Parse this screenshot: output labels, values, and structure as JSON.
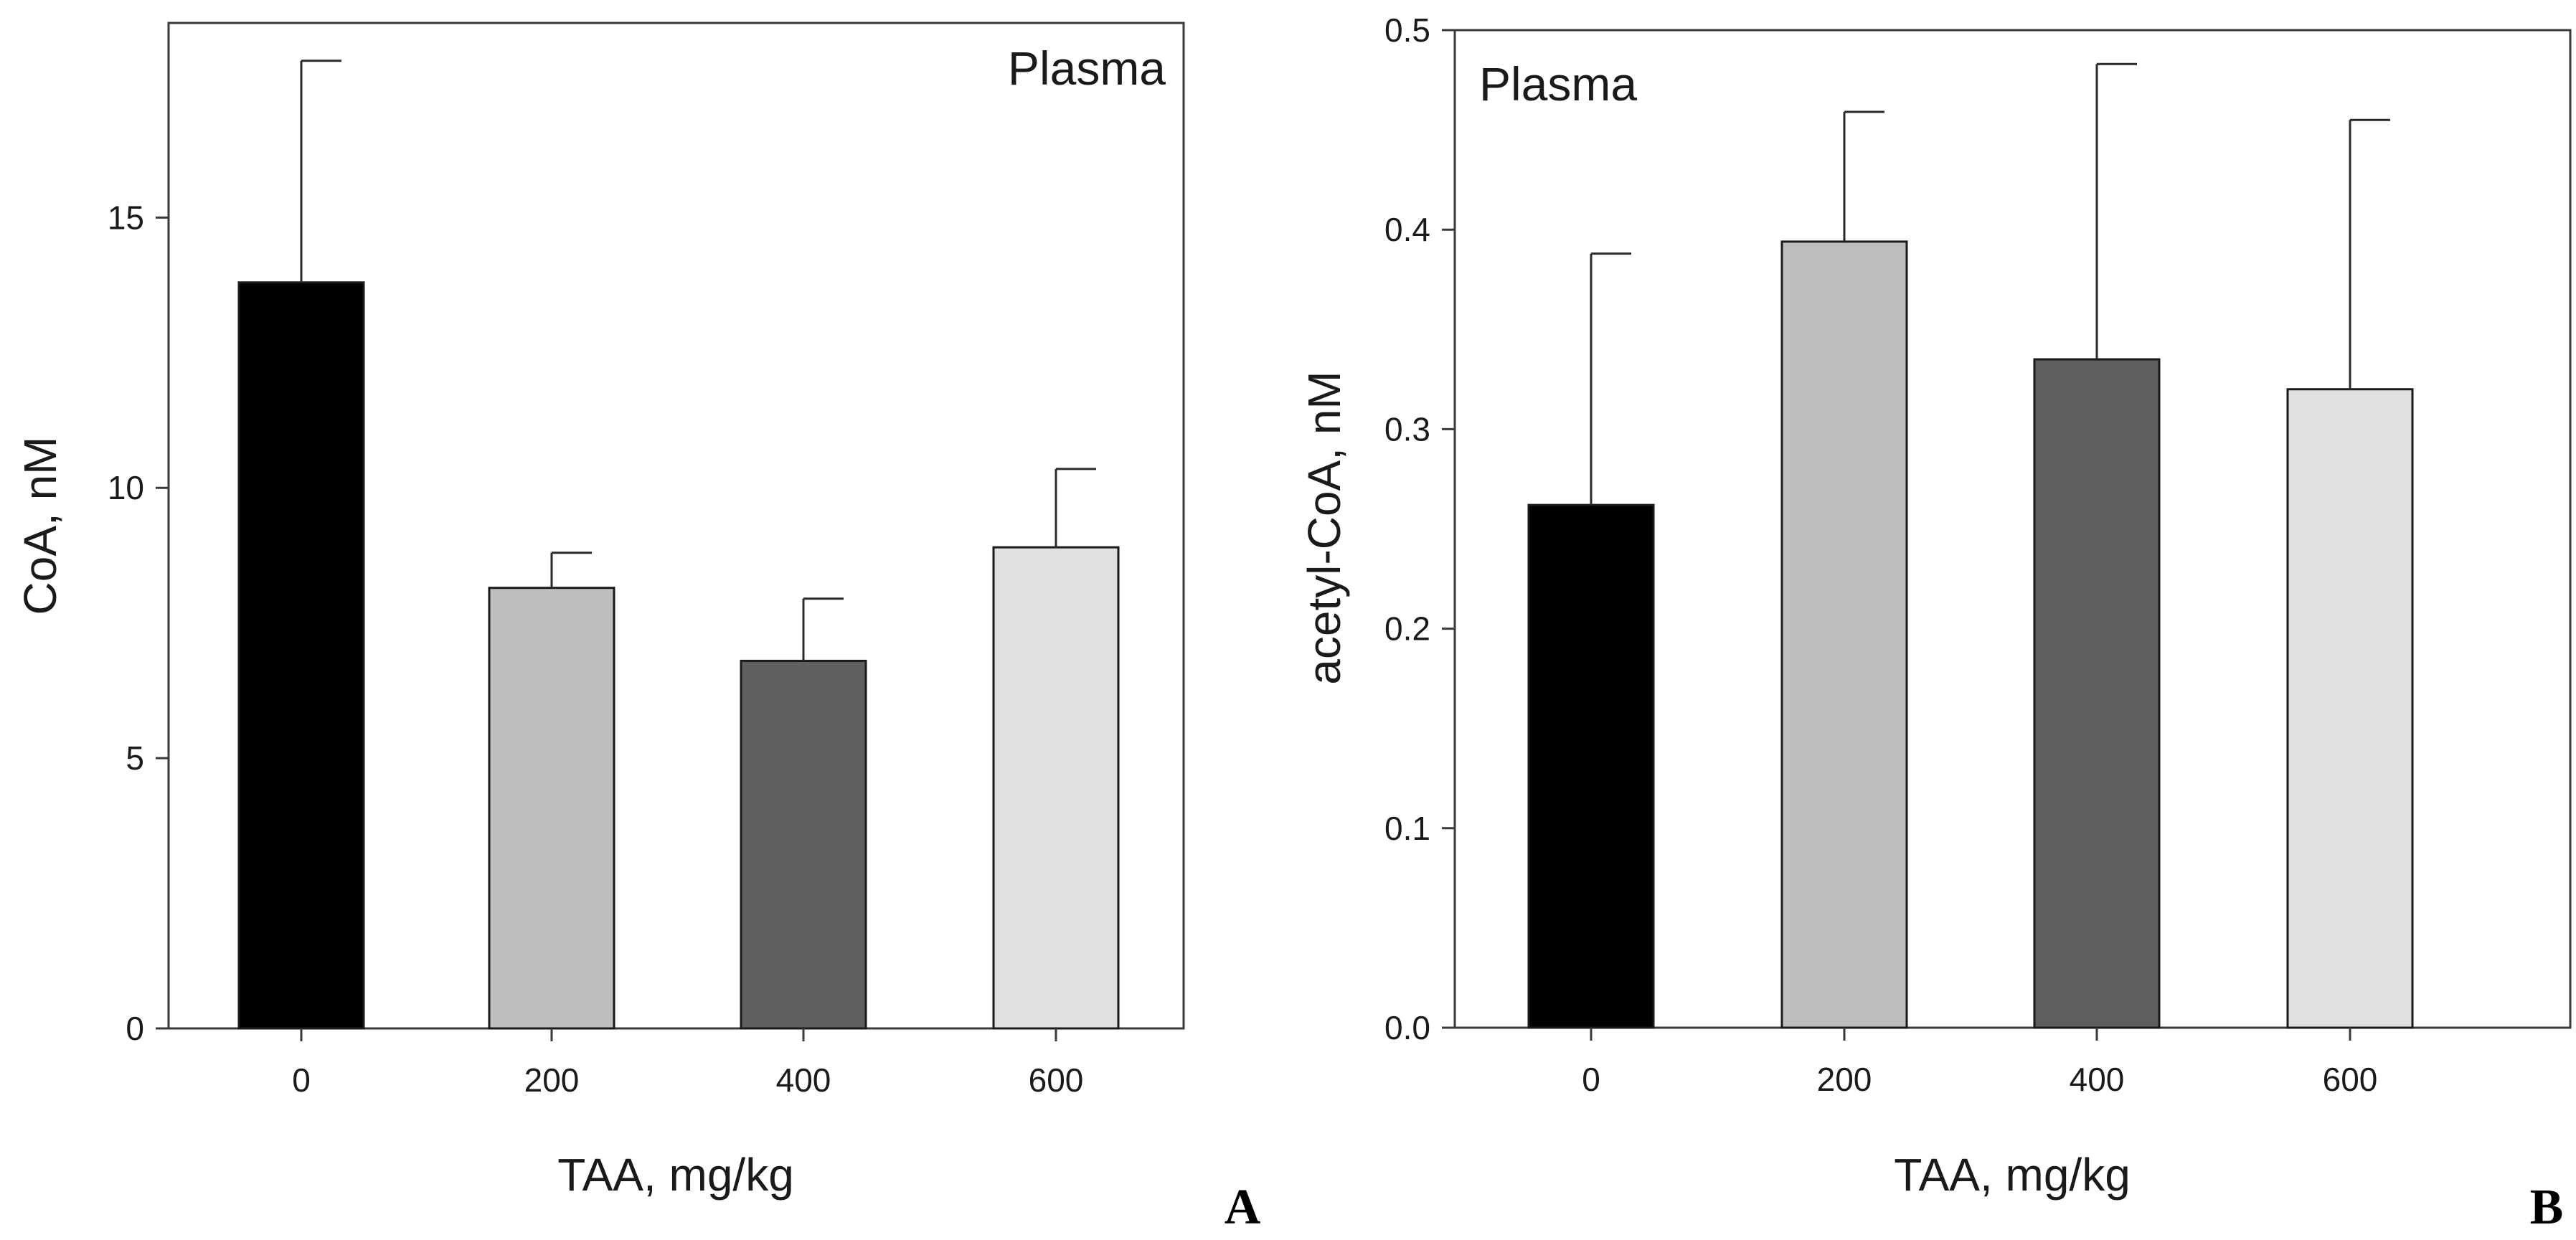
{
  "chart_data": [
    {
      "type": "bar",
      "panel": "A",
      "inset_label": "Plasma",
      "xlabel": "TAA, mg/kg",
      "ylabel": "CoA, nM",
      "categories": [
        "0",
        "200",
        "400",
        "600"
      ],
      "values": [
        13.8,
        8.15,
        6.8,
        8.9
      ],
      "error_upper": [
        4.1,
        0.65,
        1.15,
        1.45
      ],
      "colors": [
        "#000000",
        "#bdbdbd",
        "#5f5f5f",
        "#e0e0e0"
      ],
      "ylim": [
        0,
        18.6
      ],
      "yticks": [
        0,
        5,
        10,
        15
      ],
      "ytick_labels": [
        "0",
        "5",
        "10",
        "15"
      ],
      "grid": false
    },
    {
      "type": "bar",
      "panel": "B",
      "inset_label": "Plasma",
      "xlabel": "TAA, mg/kg",
      "ylabel": "acetyl-CoA, nM",
      "categories": [
        "0",
        "200",
        "400",
        "600"
      ],
      "values": [
        0.262,
        0.394,
        0.335,
        0.32
      ],
      "error_upper": [
        0.126,
        0.065,
        0.148,
        0.135
      ],
      "colors": [
        "#000000",
        "#bdbdbd",
        "#5f5f5f",
        "#e0e0e0"
      ],
      "ylim": [
        0,
        0.5
      ],
      "yticks": [
        0,
        0.1,
        0.2,
        0.3,
        0.4,
        0.5
      ],
      "ytick_labels": [
        "0.0",
        "0.1",
        "0.2",
        "0.3",
        "0.4",
        "0.5"
      ],
      "grid": false
    }
  ]
}
